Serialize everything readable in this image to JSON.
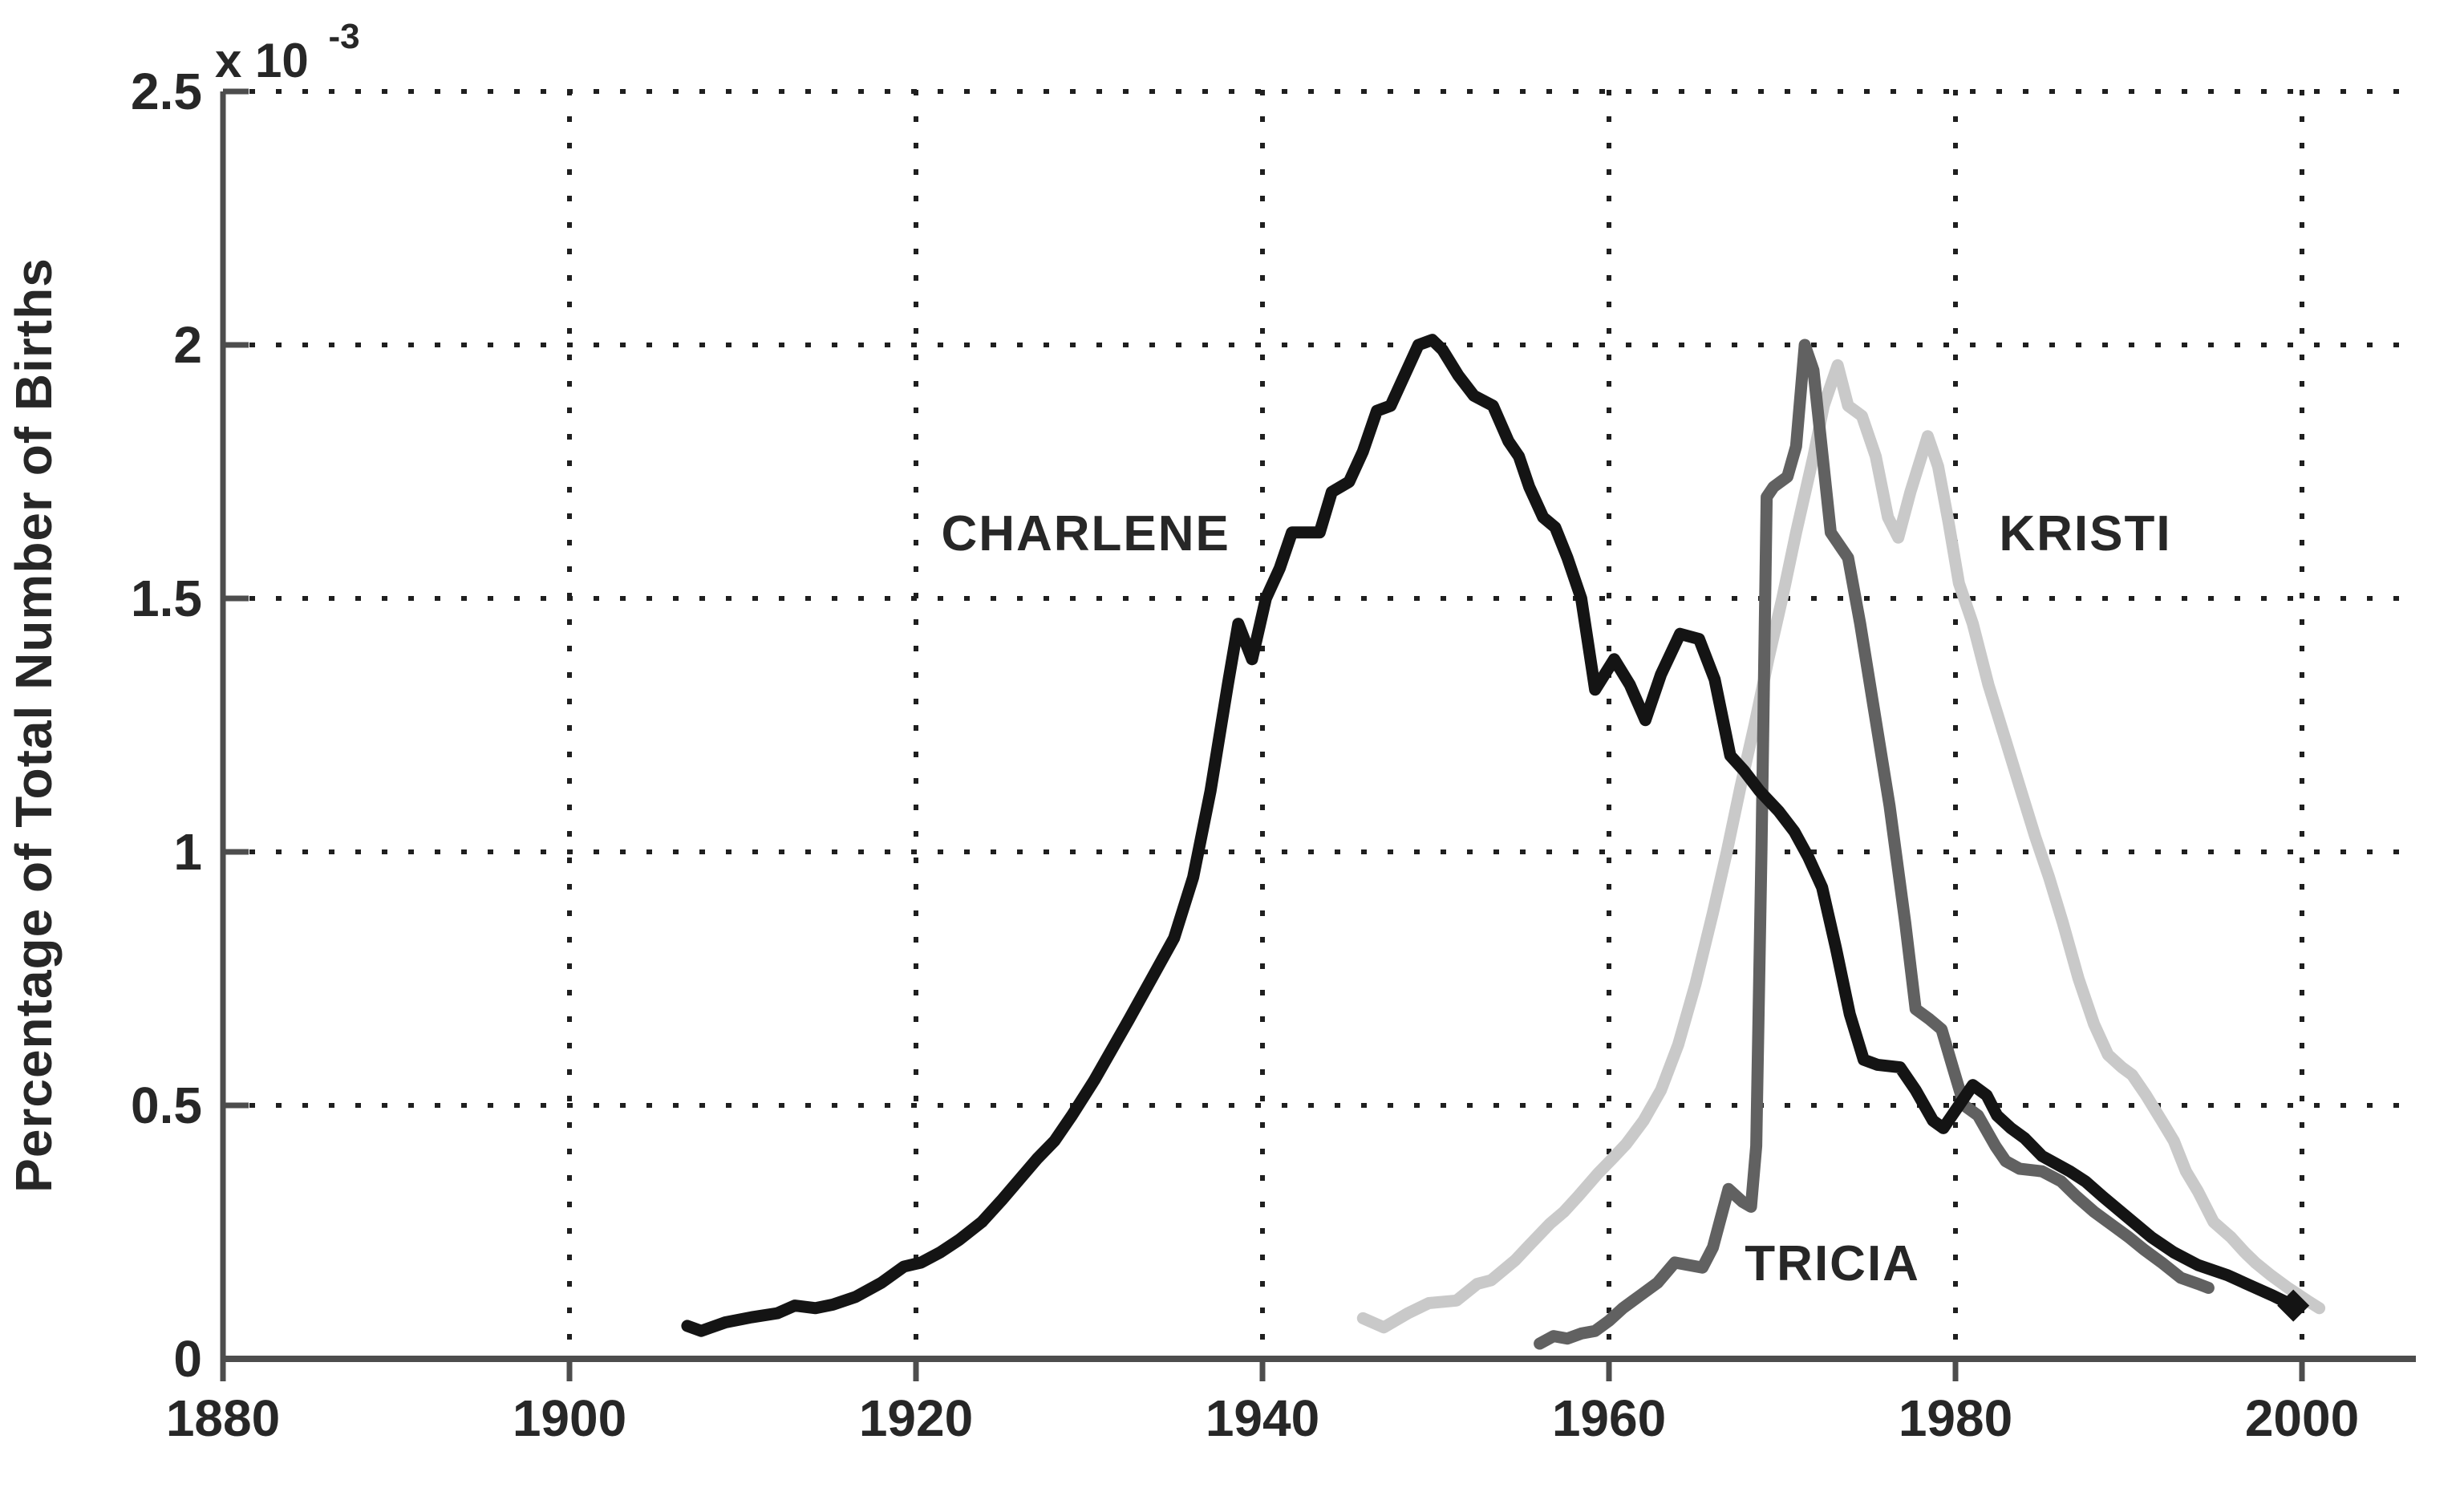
{
  "page": {
    "background": "#ffffff",
    "description": "Line chart of baby name popularity over time"
  },
  "chart_data": {
    "type": "line",
    "title": "",
    "xlabel": "",
    "ylabel": "Percentage of Total Number of Births",
    "y_offset_label": {
      "base": "x 10",
      "exponent": "-3"
    },
    "units": "y values in units of 1e-3 percent (axis offset label x 10^-3)",
    "xlim": [
      1880,
      2006.5
    ],
    "ylim": [
      0,
      2.5
    ],
    "x_ticks": [
      "1880",
      "1900",
      "1920",
      "1940",
      "1960",
      "1980",
      "2000"
    ],
    "x_tick_values": [
      1880,
      1900,
      1920,
      1940,
      1960,
      1980,
      2000
    ],
    "y_ticks": [
      "0",
      "0.5",
      "1",
      "1.5",
      "2",
      "2.5"
    ],
    "y_tick_values": [
      0,
      0.5,
      1,
      1.5,
      2,
      2.5
    ],
    "x_gridlines": [
      1900,
      1920,
      1940,
      1960,
      1980,
      2000
    ],
    "y_gridlines": [
      0.5,
      1,
      1.5,
      2,
      2.5
    ],
    "grid_style": "dotted",
    "legend_position": "inline-labels",
    "axis_color": "#4d4d4d",
    "grid_color": "#1f1f1f",
    "text_color": "#272727",
    "series": [
      {
        "name": "KRISTI",
        "color": "#c9c9c9",
        "line_width": 15,
        "label": {
          "text": "KRISTI",
          "x": 1987.5,
          "y": 1.63
        },
        "points": [
          [
            1945.8,
            0.08
          ],
          [
            1947,
            0.062
          ],
          [
            1948.4,
            0.09
          ],
          [
            1949.6,
            0.11
          ],
          [
            1951.2,
            0.115
          ],
          [
            1952.4,
            0.148
          ],
          [
            1953.2,
            0.155
          ],
          [
            1954.6,
            0.195
          ],
          [
            1955.4,
            0.224
          ],
          [
            1956.6,
            0.267
          ],
          [
            1957.4,
            0.29
          ],
          [
            1958.2,
            0.32
          ],
          [
            1959.4,
            0.367
          ],
          [
            1960.2,
            0.395
          ],
          [
            1961,
            0.424
          ],
          [
            1962,
            0.47
          ],
          [
            1963,
            0.53
          ],
          [
            1964,
            0.62
          ],
          [
            1965,
            0.74
          ],
          [
            1966,
            0.88
          ],
          [
            1966.8,
            1.0
          ],
          [
            1967.6,
            1.13
          ],
          [
            1968.4,
            1.25
          ],
          [
            1969.2,
            1.38
          ],
          [
            1970,
            1.5
          ],
          [
            1970.8,
            1.63
          ],
          [
            1971.8,
            1.78
          ],
          [
            1972.4,
            1.88
          ],
          [
            1973.2,
            1.96
          ],
          [
            1973.8,
            1.88
          ],
          [
            1974.6,
            1.86
          ],
          [
            1975.4,
            1.78
          ],
          [
            1976.1,
            1.66
          ],
          [
            1976.7,
            1.62
          ],
          [
            1977.4,
            1.71
          ],
          [
            1978.4,
            1.82
          ],
          [
            1979,
            1.76
          ],
          [
            1979.6,
            1.65
          ],
          [
            1980.2,
            1.53
          ],
          [
            1981,
            1.45
          ],
          [
            1981.9,
            1.33
          ],
          [
            1982.8,
            1.23
          ],
          [
            1983.7,
            1.13
          ],
          [
            1984.6,
            1.03
          ],
          [
            1985.4,
            0.95
          ],
          [
            1986.2,
            0.86
          ],
          [
            1987.1,
            0.75
          ],
          [
            1988,
            0.66
          ],
          [
            1988.8,
            0.6
          ],
          [
            1989.6,
            0.575
          ],
          [
            1990.2,
            0.56
          ],
          [
            1991,
            0.52
          ],
          [
            1991.9,
            0.47
          ],
          [
            1992.6,
            0.43
          ],
          [
            1993.3,
            0.37
          ],
          [
            1994,
            0.33
          ],
          [
            1994.9,
            0.27
          ],
          [
            1995.9,
            0.24
          ],
          [
            1996.7,
            0.21
          ],
          [
            1997.3,
            0.19
          ],
          [
            1998.2,
            0.165
          ],
          [
            1999.2,
            0.14
          ],
          [
            2000.3,
            0.115
          ],
          [
            2001,
            0.1
          ]
        ]
      },
      {
        "name": "TRICIA",
        "color": "#616161",
        "line_width": 15,
        "label": {
          "text": "TRICIA",
          "x": 1972.9,
          "y": 0.19
        },
        "points": [
          [
            1956,
            0.03
          ],
          [
            1956.8,
            0.045
          ],
          [
            1957.6,
            0.04
          ],
          [
            1958.4,
            0.05
          ],
          [
            1959.2,
            0.055
          ],
          [
            1960,
            0.075
          ],
          [
            1960.8,
            0.1
          ],
          [
            1961.8,
            0.125
          ],
          [
            1962.8,
            0.15
          ],
          [
            1963.8,
            0.19
          ],
          [
            1964.6,
            0.185
          ],
          [
            1965.4,
            0.18
          ],
          [
            1966,
            0.22
          ],
          [
            1966.9,
            0.335
          ],
          [
            1967.7,
            0.31
          ],
          [
            1968.2,
            0.3
          ],
          [
            1968.5,
            0.42
          ],
          [
            1968.8,
            1.0
          ],
          [
            1969.1,
            1.7
          ],
          [
            1969.5,
            1.72
          ],
          [
            1970.3,
            1.74
          ],
          [
            1970.8,
            1.8
          ],
          [
            1971.3,
            2.0
          ],
          [
            1971.8,
            1.95
          ],
          [
            1972.3,
            1.79
          ],
          [
            1972.8,
            1.63
          ],
          [
            1973.8,
            1.58
          ],
          [
            1974.5,
            1.45
          ],
          [
            1975.3,
            1.28
          ],
          [
            1976.2,
            1.09
          ],
          [
            1977.1,
            0.86
          ],
          [
            1977.7,
            0.69
          ],
          [
            1978.5,
            0.67
          ],
          [
            1979.2,
            0.65
          ],
          [
            1979.8,
            0.58
          ],
          [
            1980.5,
            0.5
          ],
          [
            1981.3,
            0.48
          ],
          [
            1982.3,
            0.42
          ],
          [
            1982.9,
            0.39
          ],
          [
            1983.7,
            0.375
          ],
          [
            1985,
            0.37
          ],
          [
            1986.1,
            0.35
          ],
          [
            1987,
            0.32
          ],
          [
            1988,
            0.29
          ],
          [
            1989,
            0.265
          ],
          [
            1990,
            0.24
          ],
          [
            1990.9,
            0.215
          ],
          [
            1991.9,
            0.19
          ],
          [
            1993,
            0.16
          ],
          [
            1994,
            0.148
          ],
          [
            1994.6,
            0.14
          ]
        ]
      },
      {
        "name": "CHARLENE",
        "color": "#141414",
        "line_width": 15,
        "end_marker": "diamond",
        "label": {
          "text": "CHARLENE",
          "x": 1929.8,
          "y": 1.63
        },
        "points": [
          [
            1906.8,
            0.065
          ],
          [
            1907.6,
            0.055
          ],
          [
            1909,
            0.072
          ],
          [
            1910.5,
            0.082
          ],
          [
            1912,
            0.09
          ],
          [
            1913,
            0.105
          ],
          [
            1914.2,
            0.1
          ],
          [
            1915.2,
            0.107
          ],
          [
            1916.5,
            0.122
          ],
          [
            1918,
            0.15
          ],
          [
            1919.3,
            0.182
          ],
          [
            1920.3,
            0.19
          ],
          [
            1921.4,
            0.21
          ],
          [
            1922.5,
            0.235
          ],
          [
            1923.8,
            0.27
          ],
          [
            1925,
            0.315
          ],
          [
            1926,
            0.355
          ],
          [
            1927,
            0.395
          ],
          [
            1928,
            0.43
          ],
          [
            1929,
            0.48
          ],
          [
            1930.3,
            0.55
          ],
          [
            1931.3,
            0.61
          ],
          [
            1932.3,
            0.67
          ],
          [
            1933.6,
            0.75
          ],
          [
            1934.9,
            0.83
          ],
          [
            1936,
            0.95
          ],
          [
            1937,
            1.12
          ],
          [
            1938,
            1.33
          ],
          [
            1938.6,
            1.45
          ],
          [
            1939.4,
            1.38
          ],
          [
            1940.2,
            1.5
          ],
          [
            1941,
            1.56
          ],
          [
            1941.7,
            1.63
          ],
          [
            1943.3,
            1.63
          ],
          [
            1944,
            1.71
          ],
          [
            1945,
            1.73
          ],
          [
            1945.8,
            1.79
          ],
          [
            1946.6,
            1.87
          ],
          [
            1947.4,
            1.88
          ],
          [
            1948.2,
            1.94
          ],
          [
            1949,
            2.0
          ],
          [
            1949.8,
            2.01
          ],
          [
            1950.4,
            1.99
          ],
          [
            1951.3,
            1.94
          ],
          [
            1952.2,
            1.9
          ],
          [
            1953.3,
            1.88
          ],
          [
            1954.2,
            1.81
          ],
          [
            1954.8,
            1.78
          ],
          [
            1955.4,
            1.72
          ],
          [
            1956.2,
            1.66
          ],
          [
            1956.9,
            1.64
          ],
          [
            1957.6,
            1.58
          ],
          [
            1958.4,
            1.5
          ],
          [
            1959.2,
            1.32
          ],
          [
            1960.3,
            1.38
          ],
          [
            1961.2,
            1.33
          ],
          [
            1962.1,
            1.26
          ],
          [
            1963,
            1.35
          ],
          [
            1964.1,
            1.43
          ],
          [
            1965.2,
            1.42
          ],
          [
            1966.1,
            1.34
          ],
          [
            1967,
            1.19
          ],
          [
            1967.8,
            1.16
          ],
          [
            1968.7,
            1.12
          ],
          [
            1969.8,
            1.08
          ],
          [
            1970.7,
            1.04
          ],
          [
            1971.5,
            0.99
          ],
          [
            1972.3,
            0.93
          ],
          [
            1973.1,
            0.81
          ],
          [
            1973.9,
            0.68
          ],
          [
            1974.7,
            0.59
          ],
          [
            1975.5,
            0.58
          ],
          [
            1976.8,
            0.575
          ],
          [
            1977.7,
            0.53
          ],
          [
            1978.7,
            0.47
          ],
          [
            1979.3,
            0.455
          ],
          [
            1980.2,
            0.5
          ],
          [
            1981,
            0.54
          ],
          [
            1981.8,
            0.52
          ],
          [
            1982.4,
            0.48
          ],
          [
            1983.2,
            0.455
          ],
          [
            1984,
            0.435
          ],
          [
            1985,
            0.4
          ],
          [
            1985.8,
            0.385
          ],
          [
            1986.6,
            0.37
          ],
          [
            1987.5,
            0.35
          ],
          [
            1988.5,
            0.32
          ],
          [
            1989.9,
            0.28
          ],
          [
            1991.3,
            0.24
          ],
          [
            1992.6,
            0.21
          ],
          [
            1994,
            0.185
          ],
          [
            1995.7,
            0.165
          ],
          [
            1997,
            0.145
          ],
          [
            1998.3,
            0.125
          ],
          [
            1999.5,
            0.105
          ]
        ]
      }
    ]
  }
}
